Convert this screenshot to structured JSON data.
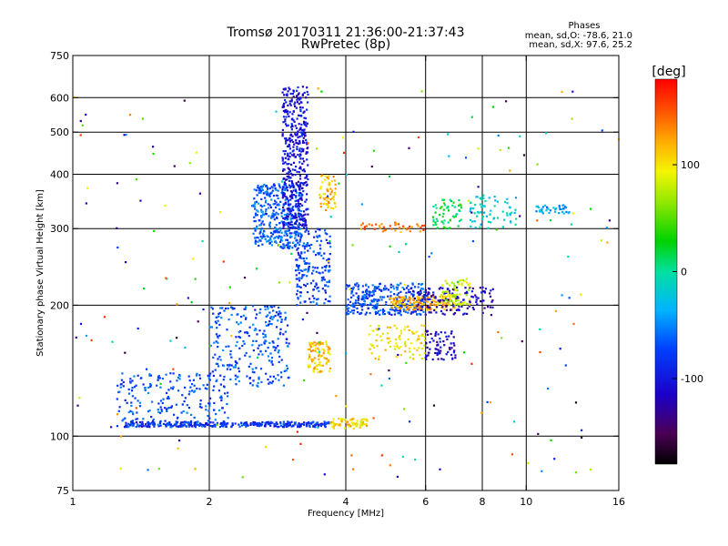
{
  "chart_data": {
    "type": "scatter",
    "title": "Tromsø 20170311 21:36:00-21:37:43",
    "subtitle": "RwPretec (8p)",
    "phases": {
      "heading": "Phases",
      "line1": "mean, sd,O: -78.6, 21.0",
      "line2": "mean, sd,X:  97.6, 25.2"
    },
    "xlabel": "Frequency [MHz]",
    "ylabel": "Stationary phase Virtual Height [km]",
    "xscale": "log",
    "yscale": "log",
    "xlim": [
      1,
      16
    ],
    "ylim": [
      75,
      750
    ],
    "xticks": [
      1,
      2,
      4,
      6,
      8,
      10,
      16
    ],
    "xgrid": [
      2,
      4,
      6,
      8,
      10
    ],
    "yticks": [
      75,
      100,
      200,
      300,
      400,
      500,
      600,
      750
    ],
    "ygrid": [
      100,
      200,
      300,
      400,
      500,
      600
    ],
    "grid": true,
    "colorbar": {
      "label": "[deg]",
      "min": -180,
      "max": 180,
      "ticks": [
        100,
        0,
        -100
      ]
    },
    "clusters": [
      {
        "x": [
          1.3,
          3.7
        ],
        "y": [
          105,
          108
        ],
        "n": 320,
        "phase": -85
      },
      {
        "x": [
          3.7,
          4.5
        ],
        "y": [
          104,
          110
        ],
        "n": 70,
        "phase": 105
      },
      {
        "x": [
          1.25,
          2.2
        ],
        "y": [
          105,
          140
        ],
        "n": 220,
        "phase": -70
      },
      {
        "x": [
          2.0,
          3.0
        ],
        "y": [
          130,
          200
        ],
        "n": 260,
        "phase": -70
      },
      {
        "x": [
          2.5,
          3.2
        ],
        "y": [
          270,
          380
        ],
        "n": 380,
        "phase": -65
      },
      {
        "x": [
          2.9,
          3.3
        ],
        "y": [
          300,
          640
        ],
        "n": 420,
        "phase": -105
      },
      {
        "x": [
          3.1,
          3.7
        ],
        "y": [
          200,
          300
        ],
        "n": 180,
        "phase": -75
      },
      {
        "x": [
          3.5,
          3.8
        ],
        "y": [
          330,
          400
        ],
        "n": 60,
        "phase": 115
      },
      {
        "x": [
          3.3,
          3.7
        ],
        "y": [
          140,
          165
        ],
        "n": 90,
        "phase": 110
      },
      {
        "x": [
          4.0,
          6.0
        ],
        "y": [
          190,
          225
        ],
        "n": 300,
        "phase": -70
      },
      {
        "x": [
          5.0,
          7.0
        ],
        "y": [
          195,
          210
        ],
        "n": 150,
        "phase": 120
      },
      {
        "x": [
          5.5,
          8.5
        ],
        "y": [
          190,
          220
        ],
        "n": 140,
        "phase": -120
      },
      {
        "x": [
          6.5,
          7.5
        ],
        "y": [
          200,
          230
        ],
        "n": 70,
        "phase": 80
      },
      {
        "x": [
          4.5,
          6.0
        ],
        "y": [
          150,
          180
        ],
        "n": 90,
        "phase": 100
      },
      {
        "x": [
          6.0,
          7.0
        ],
        "y": [
          150,
          175
        ],
        "n": 70,
        "phase": -115
      },
      {
        "x": [
          6.2,
          7.2
        ],
        "y": [
          300,
          350
        ],
        "n": 60,
        "phase": 20
      },
      {
        "x": [
          7.5,
          9.5
        ],
        "y": [
          300,
          360
        ],
        "n": 70,
        "phase": -20
      },
      {
        "x": [
          10.5,
          12.5
        ],
        "y": [
          325,
          340
        ],
        "n": 40,
        "phase": -40
      },
      {
        "x": [
          4.3,
          6.0
        ],
        "y": [
          295,
          310
        ],
        "n": 40,
        "phase": 140
      },
      {
        "x": [
          1.0,
          16.0
        ],
        "y": [
          80,
          650
        ],
        "n": 220,
        "phase": 0
      }
    ]
  }
}
